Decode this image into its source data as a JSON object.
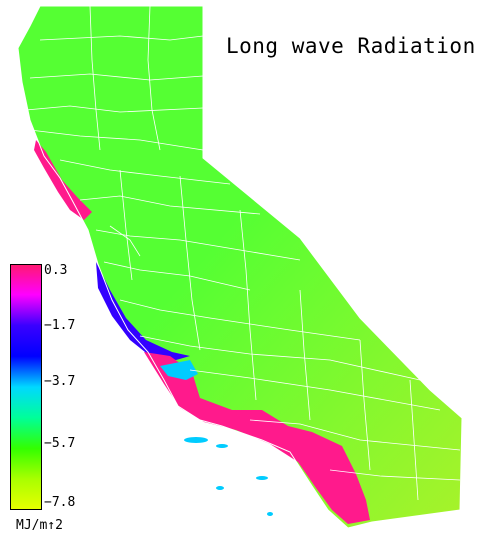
{
  "title": "Long wave Radiation",
  "legend": {
    "unit": "MJ/m↑2",
    "ticks": [
      "0.3",
      "−1.7",
      "−3.7",
      "−5.7",
      "−7.8"
    ],
    "max": 0.3,
    "min": -7.8,
    "colors": [
      "#ff1a6e",
      "#ff00ff",
      "#3a00ff",
      "#0000ff",
      "#00d8ff",
      "#00ff99",
      "#33ff00",
      "#aaff00",
      "#e8ff00"
    ]
  },
  "map": {
    "region": "California",
    "colors": {
      "land": "#55ff33",
      "land_east": "#a8f22a",
      "coast_high": "#ff1a8c",
      "coast_mid": "#3300ff",
      "coast_low": "#00ccff",
      "county_lines": "#ffffff"
    }
  }
}
